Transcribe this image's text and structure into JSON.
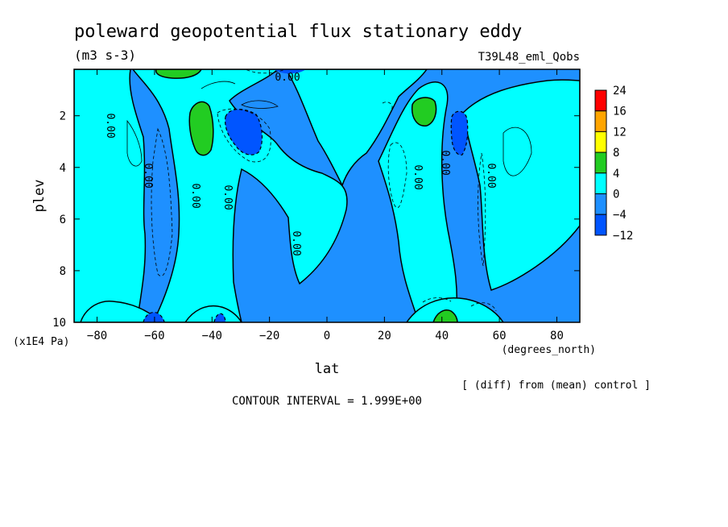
{
  "chart_data": {
    "type": "heatmap",
    "title": "poleward geopotential flux stationary eddy",
    "units": "(m3 s-3)",
    "run_label": "T39L48_eml_Qobs",
    "xlabel": "lat",
    "xunits": "(degrees_north)",
    "ylabel": "plev",
    "yunits": "(x1E4 Pa)",
    "diff_note": "[ (diff) from (mean) control ]",
    "contour_interval": "CONTOUR INTERVAL = 1.999E+00",
    "xlim": [
      -88,
      88
    ],
    "ylim": [
      0.2,
      10
    ],
    "y_inverted": true,
    "xticks": [
      -80,
      -60,
      -40,
      -20,
      0,
      20,
      40,
      60,
      80
    ],
    "xtick_labels": [
      "−80",
      "−60",
      "−40",
      "−20",
      "0",
      "20",
      "40",
      "60",
      "80"
    ],
    "yticks": [
      2,
      4,
      6,
      8,
      10
    ],
    "ytick_labels": [
      "2",
      "4",
      "6",
      "8",
      "10"
    ],
    "zero_contour_label": "0.00",
    "legend": {
      "placement": "right",
      "levels": [
        "24",
        "16",
        "12",
        "8",
        "4",
        "0",
        "−4",
        "−12"
      ],
      "colors": [
        "#ff0000",
        "#ffa500",
        "#ffff00",
        "#22cc22",
        "#00ffff",
        "#1e90ff",
        "#0055ff"
      ]
    },
    "colors": {
      "neg_12_to_4": "#0055ff",
      "neg_4_to_0": "#1e90ff",
      "zero_to_4": "#00ffff",
      "four_to_8": "#22cc22"
    },
    "grid": false
  }
}
